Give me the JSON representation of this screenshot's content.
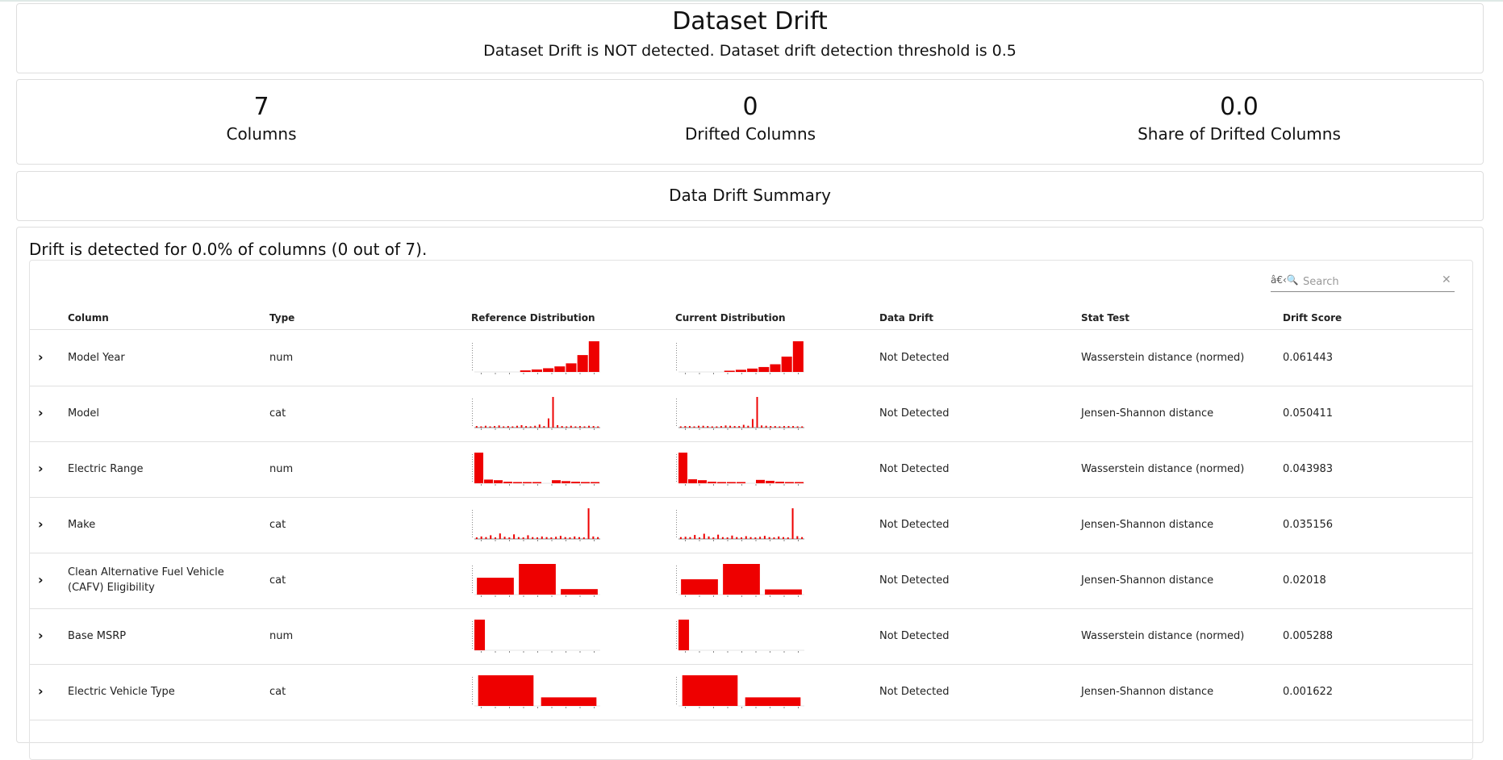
{
  "header": {
    "title": "Dataset Drift",
    "subtitle": "Dataset Drift is NOT detected. Dataset drift detection threshold is 0.5"
  },
  "counters": [
    {
      "value": "7",
      "label": "Columns"
    },
    {
      "value": "0",
      "label": "Drifted Columns"
    },
    {
      "value": "0.0",
      "label": "Share of Drifted Columns"
    }
  ],
  "summary": {
    "title": "Data Drift Summary"
  },
  "main": {
    "drift_message": "Drift is detected for 0.0% of columns (0 out of 7).",
    "search": {
      "icon_text": "â€‹🔍",
      "placeholder": "Search"
    },
    "columns": [
      "Column",
      "Type",
      "Reference Distribution",
      "Current Distribution",
      "Data Drift",
      "Stat Test",
      "Drift Score"
    ],
    "rows": [
      {
        "column": "Model Year",
        "type": "num",
        "drift": "Not Detected",
        "stat_test": "Wasserstein distance (normed)",
        "score": "0.061443",
        "ref": [
          0,
          0,
          0,
          0,
          0.05,
          0.08,
          0.12,
          0.18,
          0.28,
          0.55,
          1.0
        ],
        "cur": [
          0,
          0,
          0,
          0,
          0.04,
          0.07,
          0.11,
          0.16,
          0.25,
          0.5,
          1.0
        ],
        "kind": "bar"
      },
      {
        "column": "Model",
        "type": "cat",
        "drift": "Not Detected",
        "stat_test": "Jensen-Shannon distance",
        "score": "0.050411",
        "ref": [
          0.05,
          0.04,
          0.06,
          0.03,
          0.05,
          0.07,
          0.04,
          0.05,
          0.03,
          0.06,
          0.08,
          0.05,
          0.04,
          0.06,
          0.1,
          0.05,
          0.3,
          1.0,
          0.08,
          0.05,
          0.04,
          0.06,
          0.03,
          0.05,
          0.04,
          0.06,
          0.05,
          0.03
        ],
        "cur": [
          0.04,
          0.05,
          0.05,
          0.03,
          0.06,
          0.06,
          0.05,
          0.04,
          0.04,
          0.05,
          0.07,
          0.06,
          0.05,
          0.05,
          0.09,
          0.06,
          0.28,
          1.0,
          0.07,
          0.06,
          0.05,
          0.05,
          0.04,
          0.05,
          0.05,
          0.05,
          0.04,
          0.04
        ],
        "kind": "spike"
      },
      {
        "column": "Electric Range",
        "type": "num",
        "drift": "Not Detected",
        "stat_test": "Wasserstein distance (normed)",
        "score": "0.043983",
        "ref": [
          1.0,
          0.12,
          0.1,
          0.05,
          0.04,
          0.03,
          0.02,
          0.0,
          0.1,
          0.07,
          0.05,
          0.04,
          0.03
        ],
        "cur": [
          1.0,
          0.13,
          0.1,
          0.05,
          0.04,
          0.02,
          0.02,
          0.0,
          0.11,
          0.08,
          0.05,
          0.04,
          0.03
        ],
        "kind": "bar"
      },
      {
        "column": "Make",
        "type": "cat",
        "drift": "Not Detected",
        "stat_test": "Jensen-Shannon distance",
        "score": "0.035156",
        "ref": [
          0.05,
          0.08,
          0.06,
          0.12,
          0.05,
          0.18,
          0.07,
          0.05,
          0.15,
          0.06,
          0.05,
          0.12,
          0.06,
          0.05,
          0.08,
          0.06,
          0.05,
          0.07,
          0.1,
          0.06,
          0.05,
          0.08,
          0.06,
          0.05,
          1.0,
          0.08,
          0.06
        ],
        "cur": [
          0.06,
          0.07,
          0.06,
          0.13,
          0.05,
          0.17,
          0.08,
          0.05,
          0.14,
          0.06,
          0.05,
          0.11,
          0.06,
          0.05,
          0.09,
          0.06,
          0.05,
          0.07,
          0.1,
          0.06,
          0.05,
          0.08,
          0.06,
          0.05,
          1.0,
          0.09,
          0.06
        ],
        "kind": "spike"
      },
      {
        "column": "Clean Alternative Fuel Vehicle (CAFV) Eligibility",
        "type": "cat",
        "drift": "Not Detected",
        "stat_test": "Jensen-Shannon distance",
        "score": "0.02018",
        "ref": [
          0.55,
          1.0,
          0.18
        ],
        "cur": [
          0.5,
          1.0,
          0.17
        ],
        "kind": "wide"
      },
      {
        "column": "Base MSRP",
        "type": "num",
        "drift": "Not Detected",
        "stat_test": "Wasserstein distance (normed)",
        "score": "0.005288",
        "ref": [
          1.0,
          0,
          0,
          0,
          0,
          0,
          0,
          0,
          0,
          0,
          0
        ],
        "cur": [
          1.0,
          0,
          0,
          0,
          0,
          0,
          0,
          0,
          0,
          0,
          0
        ],
        "kind": "bar"
      },
      {
        "column": "Electric Vehicle Type",
        "type": "cat",
        "drift": "Not Detected",
        "stat_test": "Jensen-Shannon distance",
        "score": "0.001622",
        "ref": [
          1.0,
          0.28
        ],
        "cur": [
          1.0,
          0.28
        ],
        "kind": "wide"
      }
    ]
  },
  "colors": {
    "bar": "#ee0000",
    "border": "#dedede"
  }
}
